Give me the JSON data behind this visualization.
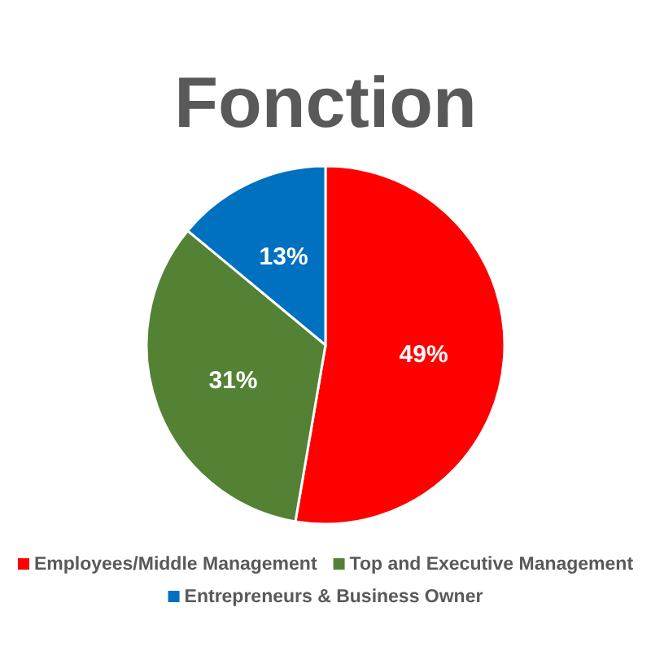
{
  "chart_data": {
    "type": "pie",
    "title": "Fonction",
    "categories": [
      "Employees/Middle Management",
      "Top and Executive Management",
      "Entrepreneurs & Business Owner"
    ],
    "values": [
      49,
      31,
      13
    ],
    "colors": [
      "#ff0000",
      "#548235",
      "#0070c0"
    ],
    "value_labels": [
      "49%",
      "31%",
      "13%"
    ],
    "legend": "bottom"
  }
}
